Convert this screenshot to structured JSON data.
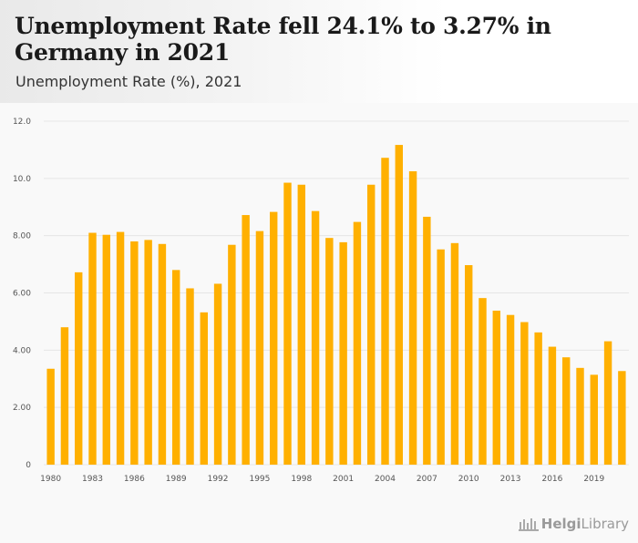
{
  "header": {
    "title": "Unemployment Rate fell 24.1% to 3.27% in Germany in 2021",
    "subtitle": "Unemployment Rate (%), 2021"
  },
  "brand": {
    "part1": "Helgi",
    "part2": "Library"
  },
  "colors": {
    "bar": "#FFB000",
    "grid": "#e6e6e6",
    "axis_text": "#555555"
  },
  "chart_data": {
    "type": "bar",
    "title": "Unemployment Rate fell 24.1% to 3.27% in Germany in 2021",
    "subtitle": "Unemployment Rate (%), 2021",
    "xlabel": "",
    "ylabel": "",
    "ylim": [
      0,
      12
    ],
    "yticks": [
      0,
      2,
      4,
      6,
      8,
      10,
      12
    ],
    "ytick_labels": [
      "0",
      "2.00",
      "4.00",
      "6.00",
      "8.00",
      "10.0",
      "12.0"
    ],
    "grid": true,
    "categories": [
      1980,
      1981,
      1982,
      1983,
      1984,
      1985,
      1986,
      1987,
      1988,
      1989,
      1990,
      1991,
      1992,
      1993,
      1994,
      1995,
      1996,
      1997,
      1998,
      1999,
      2000,
      2001,
      2002,
      2003,
      2004,
      2005,
      2006,
      2007,
      2008,
      2009,
      2010,
      2011,
      2012,
      2013,
      2014,
      2015,
      2016,
      2017,
      2018,
      2019,
      2020,
      2021
    ],
    "xtick_labels": [
      1980,
      1983,
      1986,
      1989,
      1992,
      1995,
      1998,
      2001,
      2004,
      2007,
      2010,
      2013,
      2016,
      2019
    ],
    "values": [
      3.35,
      4.8,
      6.72,
      8.1,
      8.03,
      8.13,
      7.8,
      7.85,
      7.71,
      6.8,
      6.16,
      5.32,
      6.32,
      7.68,
      8.72,
      8.16,
      8.83,
      9.85,
      9.78,
      8.86,
      7.92,
      7.77,
      8.48,
      9.78,
      10.72,
      11.17,
      10.25,
      8.66,
      7.52,
      7.74,
      6.97,
      5.82,
      5.38,
      5.23,
      4.98,
      4.62,
      4.12,
      3.75,
      3.38,
      3.14,
      4.31,
      3.27
    ]
  }
}
